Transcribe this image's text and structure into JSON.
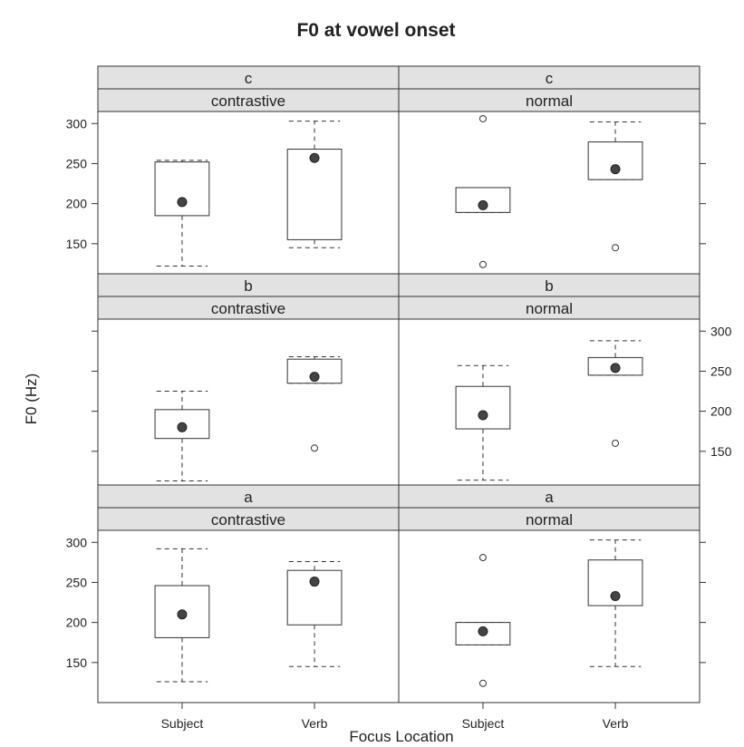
{
  "chart_data": {
    "type": "box",
    "title": "F0 at vowel onset",
    "xlabel": "Focus Location",
    "ylabel": "F0 (Hz)",
    "categories": [
      "Subject",
      "Verb"
    ],
    "ylim": [
      100,
      315
    ],
    "yticks": [
      150,
      200,
      250,
      300
    ],
    "strip_colors": {
      "fill": "#e2e2e2",
      "border": "#333333"
    },
    "panels": [
      {
        "outer": "c",
        "inner": "contrastive",
        "row": 0,
        "col": 0,
        "boxes": [
          {
            "x": "Subject",
            "whisker_low": 122,
            "q1": 185,
            "median": 202,
            "q3": 252,
            "whisker_high": 254,
            "outliers": []
          },
          {
            "x": "Verb",
            "whisker_low": 145,
            "q1": 155,
            "median": 257,
            "q3": 268,
            "whisker_high": 303,
            "outliers": []
          }
        ]
      },
      {
        "outer": "c",
        "inner": "normal",
        "row": 0,
        "col": 1,
        "boxes": [
          {
            "x": "Subject",
            "whisker_low": 189,
            "q1": 189,
            "median": 198,
            "q3": 220,
            "whisker_high": 220,
            "outliers": [
              124,
              306
            ]
          },
          {
            "x": "Verb",
            "whisker_low": 230,
            "q1": 230,
            "median": 243,
            "q3": 277,
            "whisker_high": 302,
            "outliers": [
              145
            ]
          }
        ]
      },
      {
        "outer": "b",
        "inner": "contrastive",
        "row": 1,
        "col": 0,
        "boxes": [
          {
            "x": "Subject",
            "whisker_low": 113,
            "q1": 166,
            "median": 180,
            "q3": 202,
            "whisker_high": 225,
            "outliers": []
          },
          {
            "x": "Verb",
            "whisker_low": 235,
            "q1": 235,
            "median": 243,
            "q3": 265,
            "whisker_high": 268,
            "outliers": [
              154
            ]
          }
        ]
      },
      {
        "outer": "b",
        "inner": "normal",
        "row": 1,
        "col": 1,
        "boxes": [
          {
            "x": "Subject",
            "whisker_low": 114,
            "q1": 178,
            "median": 195,
            "q3": 231,
            "whisker_high": 257,
            "outliers": []
          },
          {
            "x": "Verb",
            "whisker_low": 245,
            "q1": 245,
            "median": 254,
            "q3": 267,
            "whisker_high": 288,
            "outliers": [
              160
            ]
          }
        ]
      },
      {
        "outer": "a",
        "inner": "contrastive",
        "row": 2,
        "col": 0,
        "boxes": [
          {
            "x": "Subject",
            "whisker_low": 126,
            "q1": 181,
            "median": 210,
            "q3": 246,
            "whisker_high": 292,
            "outliers": []
          },
          {
            "x": "Verb",
            "whisker_low": 145,
            "q1": 197,
            "median": 251,
            "q3": 265,
            "whisker_high": 276,
            "outliers": []
          }
        ]
      },
      {
        "outer": "a",
        "inner": "normal",
        "row": 2,
        "col": 1,
        "boxes": [
          {
            "x": "Subject",
            "whisker_low": 172,
            "q1": 172,
            "median": 189,
            "q3": 200,
            "whisker_high": 200,
            "outliers": [
              124,
              281
            ]
          },
          {
            "x": "Verb",
            "whisker_low": 145,
            "q1": 221,
            "median": 233,
            "q3": 278,
            "whisker_high": 303,
            "outliers": []
          }
        ]
      }
    ]
  }
}
